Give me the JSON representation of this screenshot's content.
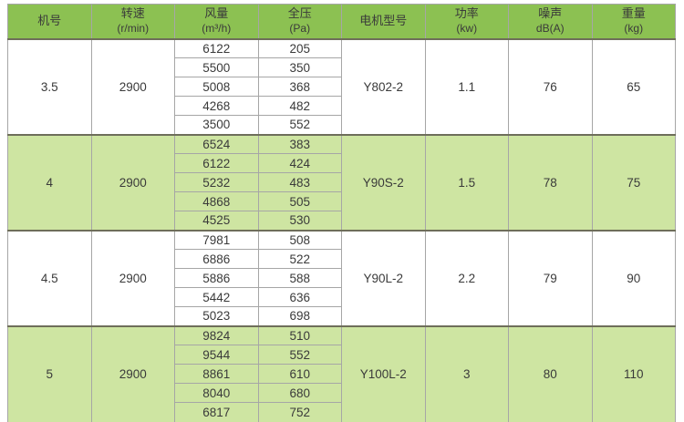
{
  "page": {
    "background": "#ffffff"
  },
  "colors": {
    "header_green": "#8cc152",
    "row_green": "#cee5a2",
    "grid_line": "#a6a6a6",
    "group_rule": "#6e6e5a",
    "text": "#3a3a3a"
  },
  "chart_data": {
    "type": "table",
    "title": "",
    "columns": [
      {
        "key": "fan-size",
        "label": "机号",
        "unit": ""
      },
      {
        "key": "speed",
        "label": "转速",
        "unit": "(r/min)"
      },
      {
        "key": "airflow",
        "label": "风量",
        "unit": "(m³/h)"
      },
      {
        "key": "pressure",
        "label": "全压",
        "unit": "(Pa)"
      },
      {
        "key": "motor-model",
        "label": "电机型号",
        "unit": ""
      },
      {
        "key": "power",
        "label": "功率",
        "unit": "(kw)"
      },
      {
        "key": "noise",
        "label": "噪声",
        "unit": "dB(A)"
      },
      {
        "key": "weight",
        "label": "重量",
        "unit": "(kg)"
      }
    ],
    "groups": [
      {
        "fan_size": "3.5",
        "speed_rpm": "2900",
        "airflow_pressure_rows": [
          [
            "6122",
            "205"
          ],
          [
            "5500",
            "350"
          ],
          [
            "5008",
            "368"
          ],
          [
            "4268",
            "482"
          ],
          [
            "3500",
            "552"
          ]
        ],
        "motor_model": "Y802-2",
        "power_kw": "1.1",
        "noise_db": "76",
        "weight_kg": "65",
        "shaded": false
      },
      {
        "fan_size": "4",
        "speed_rpm": "2900",
        "airflow_pressure_rows": [
          [
            "6524",
            "383"
          ],
          [
            "6122",
            "424"
          ],
          [
            "5232",
            "483"
          ],
          [
            "4868",
            "505"
          ],
          [
            "4525",
            "530"
          ]
        ],
        "motor_model": "Y90S-2",
        "power_kw": "1.5",
        "noise_db": "78",
        "weight_kg": "75",
        "shaded": true
      },
      {
        "fan_size": "4.5",
        "speed_rpm": "2900",
        "airflow_pressure_rows": [
          [
            "7981",
            "508"
          ],
          [
            "6886",
            "522"
          ],
          [
            "5886",
            "588"
          ],
          [
            "5442",
            "636"
          ],
          [
            "5023",
            "698"
          ]
        ],
        "motor_model": "Y90L-2",
        "power_kw": "2.2",
        "noise_db": "79",
        "weight_kg": "90",
        "shaded": false
      },
      {
        "fan_size": "5",
        "speed_rpm": "2900",
        "airflow_pressure_rows": [
          [
            "9824",
            "510"
          ],
          [
            "9544",
            "552"
          ],
          [
            "8861",
            "610"
          ],
          [
            "8040",
            "680"
          ],
          [
            "6817",
            "752"
          ]
        ],
        "motor_model": "Y100L-2",
        "power_kw": "3",
        "noise_db": "80",
        "weight_kg": "110",
        "shaded": true
      }
    ]
  }
}
